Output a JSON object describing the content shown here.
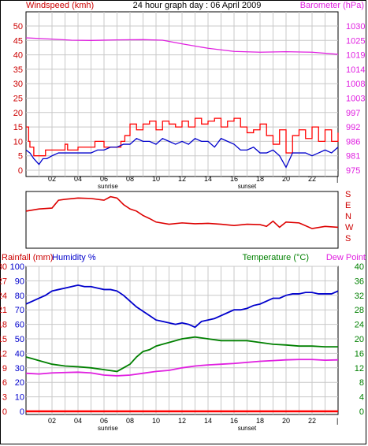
{
  "title": "24 hour graph day : 06 April 2009",
  "chart_data": [
    {
      "panel": "wind-barometer",
      "type": "line",
      "ylabel_left": "Windspeed (kmh)",
      "ylabel_right": "Barometer (hPa)",
      "yticks_left": [
        "0",
        "5",
        "10",
        "15",
        "20",
        "25",
        "30",
        "35",
        "40",
        "45",
        "50"
      ],
      "yticks_right": [
        "975",
        "981",
        "986",
        "992",
        "997",
        "1003",
        "1008",
        "1014",
        "1019",
        "1025",
        "1030"
      ],
      "ylim_left": [
        0,
        50
      ],
      "ylim_right": [
        975,
        1030
      ],
      "xticks": [
        "02",
        "04",
        "06",
        "08",
        "10",
        "12",
        "14",
        "16",
        "18",
        "20",
        "22"
      ],
      "xlim": [
        0,
        24
      ],
      "annotations": [
        {
          "text": "sunrise",
          "x": 6.3
        },
        {
          "text": "sunset",
          "x": 17
        }
      ],
      "series": [
        {
          "name": "Windspeed (kmh)",
          "color": "#ff0000",
          "axis": "left",
          "style": "gust",
          "x": [
            0,
            0.2,
            0.3,
            0.6,
            1,
            1.5,
            2,
            3,
            3.2,
            4,
            5,
            5.3,
            6,
            7,
            7.3,
            7.6,
            8,
            8.5,
            9,
            9.5,
            10,
            10.5,
            11,
            11.5,
            12,
            12.5,
            13,
            13.5,
            14,
            14.5,
            15,
            15.5,
            16,
            16.5,
            17,
            17.5,
            18,
            18.5,
            19,
            19.5,
            20,
            20.5,
            21,
            21.5,
            22,
            22.5,
            23,
            23.5,
            24
          ],
          "y": [
            15,
            10,
            8,
            5,
            5,
            7,
            7,
            9,
            7,
            8,
            8,
            10,
            8,
            8,
            10,
            12,
            16,
            14,
            16,
            17,
            14,
            17,
            16,
            15,
            17,
            15,
            18,
            16,
            17,
            18,
            15,
            17,
            18,
            15,
            13,
            14,
            16,
            12,
            9,
            14,
            6,
            12,
            14,
            11,
            15,
            10,
            14,
            10,
            13
          ]
        },
        {
          "name": "Windspeed average",
          "color": "#0000cc",
          "axis": "left",
          "style": "line",
          "x": [
            0,
            0.3,
            0.6,
            1,
            1.3,
            1.6,
            2,
            2.5,
            3,
            3.5,
            4,
            4.5,
            5,
            5.5,
            6,
            6.5,
            7,
            7.5,
            8,
            8.5,
            9,
            9.5,
            10,
            10.5,
            11,
            11.5,
            12,
            12.5,
            13,
            13.5,
            14,
            14.5,
            15,
            15.5,
            16,
            16.5,
            17,
            17.5,
            18,
            18.5,
            19,
            19.5,
            20,
            20.5,
            21,
            21.5,
            22,
            22.5,
            23,
            23.5,
            24
          ],
          "y": [
            7,
            6,
            4,
            2,
            4,
            4,
            5,
            6,
            6,
            6,
            6,
            6,
            6,
            7,
            7,
            8,
            8,
            9,
            9,
            11,
            10,
            10,
            9,
            11,
            10,
            9,
            10,
            9,
            11,
            10,
            10,
            8,
            11,
            10,
            9,
            7,
            7,
            8,
            6,
            6,
            7,
            5,
            1,
            6,
            6,
            6,
            5,
            6,
            7,
            6,
            8
          ]
        },
        {
          "name": "Barometer (hPa)",
          "color": "#e020e0",
          "axis": "right",
          "style": "line",
          "x": [
            0,
            2,
            3.5,
            5,
            7,
            9,
            10.5,
            12,
            14,
            16,
            18,
            20,
            22,
            24
          ],
          "y": [
            1025.5,
            1025,
            1024.6,
            1024.5,
            1024.7,
            1024.8,
            1024.6,
            1023.2,
            1021.5,
            1020.3,
            1020,
            1020.2,
            1020,
            1019.2
          ]
        }
      ]
    },
    {
      "panel": "wind-direction",
      "type": "line",
      "ylabel_right": [
        "S",
        "E",
        "N",
        "W",
        "S"
      ],
      "series": [
        {
          "name": "Wind direction",
          "color": "#dd0000",
          "x": [
            0,
            1,
            2,
            2.5,
            3,
            4,
            5,
            6,
            6.5,
            7,
            7.5,
            8,
            8.5,
            9,
            9.5,
            10,
            11,
            12,
            13,
            14,
            15,
            16,
            17,
            18,
            18.5,
            19,
            19.5,
            20,
            21,
            22,
            23,
            24
          ],
          "y": [
            85,
            90,
            92,
            110,
            112,
            115,
            114,
            110,
            118,
            115,
            100,
            90,
            85,
            75,
            68,
            60,
            55,
            58,
            56,
            57,
            55,
            52,
            55,
            54,
            50,
            62,
            48,
            60,
            58,
            45,
            50,
            48
          ]
        }
      ]
    },
    {
      "panel": "temp-humidity-rain",
      "type": "line",
      "ylabel_left_rain": "Rainfall (mm)",
      "ylabel_left_hum": "Humidity %",
      "ylabel_right_temp": "Temperature (°C)",
      "ylabel_right_dew": "Dew Point",
      "yticks_rain": [
        "0",
        "3",
        "6",
        "9",
        "12",
        "15",
        "18",
        "21",
        "24",
        "27",
        "30"
      ],
      "yticks_hum": [
        "0",
        "10",
        "20",
        "30",
        "40",
        "50",
        "60",
        "70",
        "80",
        "90",
        "100"
      ],
      "yticks_temp": [
        "0",
        "4",
        "8",
        "12",
        "16",
        "20",
        "24",
        "28",
        "32",
        "36",
        "40"
      ],
      "ylim_rain": [
        0,
        30
      ],
      "ylim_temp": [
        0,
        40
      ],
      "xticks": [
        "02",
        "04",
        "06",
        "08",
        "10",
        "12",
        "14",
        "16",
        "18",
        "20",
        "22"
      ],
      "xlim": [
        0,
        24
      ],
      "annotations": [
        {
          "text": "sunrise",
          "x": 6.3
        },
        {
          "text": "sunset",
          "x": 17
        }
      ],
      "series": [
        {
          "name": "Humidity %",
          "color": "#0000cc",
          "axis": "hum",
          "x": [
            0,
            0.5,
            1,
            1.5,
            2,
            2.5,
            3,
            3.5,
            4,
            4.5,
            5,
            5.5,
            6,
            6.5,
            7,
            7.5,
            8,
            8.5,
            9,
            9.5,
            10,
            10.5,
            11,
            11.5,
            12,
            12.5,
            13,
            13.5,
            14,
            14.5,
            15,
            15.5,
            16,
            16.5,
            17,
            17.5,
            18,
            18.5,
            19,
            19.5,
            20,
            20.5,
            21,
            21.5,
            22,
            22.5,
            23,
            23.5,
            24
          ],
          "y": [
            74,
            76,
            78,
            80,
            83,
            84,
            85,
            86,
            87,
            86,
            86,
            85,
            84,
            84,
            83,
            80,
            76,
            72,
            69,
            66,
            63,
            62,
            61,
            60,
            61,
            60,
            58,
            62,
            63,
            64,
            66,
            68,
            70,
            70,
            71,
            73,
            74,
            76,
            78,
            78,
            80,
            81,
            81,
            82,
            82,
            81,
            81,
            81,
            83
          ]
        },
        {
          "name": "Temperature (°C)",
          "color": "#008000",
          "axis": "temp",
          "x": [
            0,
            0.5,
            1,
            2,
            3,
            4,
            5,
            6,
            7,
            7.5,
            8,
            8.5,
            9,
            9.5,
            10,
            10.5,
            11,
            12,
            13,
            14,
            15,
            16,
            17,
            18,
            19,
            20,
            21,
            22,
            23,
            24
          ],
          "y": [
            15,
            14.5,
            14,
            13,
            12.5,
            12.3,
            12,
            11.5,
            11,
            12,
            13,
            15,
            16.5,
            17,
            18,
            18.5,
            19,
            20,
            20.5,
            20,
            19.5,
            19.5,
            19.5,
            19,
            18.5,
            18.3,
            18,
            18,
            17.8,
            17.8
          ]
        },
        {
          "name": "Dew Point",
          "color": "#e020e0",
          "axis": "temp",
          "x": [
            0,
            1,
            2,
            3,
            4,
            5,
            6,
            7,
            8,
            9,
            10,
            11,
            12,
            13,
            14,
            15,
            16,
            17,
            18,
            19,
            20,
            21,
            22,
            23,
            24
          ],
          "y": [
            10.5,
            10.3,
            10.6,
            10.7,
            10.8,
            10.6,
            10,
            9.8,
            10,
            10.5,
            11,
            11.3,
            12,
            12.5,
            12.8,
            13,
            13.2,
            13.5,
            13.8,
            14,
            14.2,
            14.3,
            14.3,
            14.1,
            14.2
          ]
        },
        {
          "name": "Rainfall (mm)",
          "color": "#ff0000",
          "axis": "rain",
          "x": [
            0,
            24
          ],
          "y": [
            0,
            0
          ]
        }
      ]
    }
  ]
}
